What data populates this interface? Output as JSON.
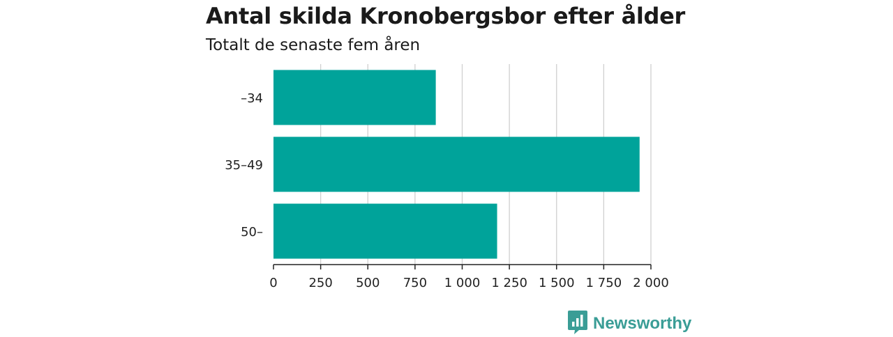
{
  "colors": {
    "bar": "#00a39a",
    "grid": "#d0d0d0",
    "axis": "#222222",
    "brand": "#3a9d96"
  },
  "chart_data": {
    "type": "bar",
    "orientation": "horizontal",
    "title": "Antal skilda Kronobergsbor efter ålder",
    "subtitle": "Totalt de senaste fem åren",
    "categories": [
      "–34",
      "35–49",
      "50–"
    ],
    "values": [
      860,
      1940,
      1185
    ],
    "xlim": [
      0,
      2000
    ],
    "xticks": [
      0,
      250,
      500,
      750,
      1000,
      1250,
      1500,
      1750,
      2000
    ],
    "xtick_labels": [
      "0",
      "250",
      "500",
      "750",
      "1 000",
      "1 250",
      "1 500",
      "1 750",
      "2 000"
    ],
    "grid": "vertical"
  },
  "branding": {
    "logo_text": "Newsworthy",
    "logo_icon": "bar-chart-bubble-icon"
  }
}
